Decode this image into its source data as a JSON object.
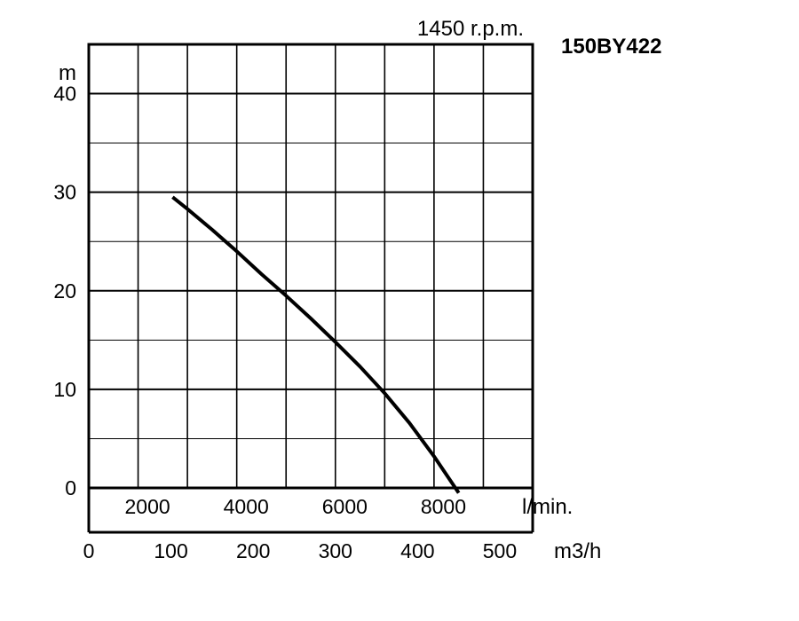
{
  "chart_data": {
    "type": "line",
    "title": "150BY422",
    "subtitle": "1450 r.p.m.",
    "ylabel": "m",
    "ylim": [
      0,
      45
    ],
    "yticks": [
      0,
      10,
      20,
      30,
      40
    ],
    "y_grid_step": 5,
    "xlabel_primary": "l/min.",
    "xlim_primary": [
      0,
      9000
    ],
    "xticks_primary": [
      2000,
      4000,
      6000,
      8000
    ],
    "x_grid_step": 1000,
    "xlabel_secondary": "m3/h",
    "xlim_secondary": [
      0,
      540
    ],
    "xticks_secondary": [
      0,
      100,
      200,
      300,
      400,
      500
    ],
    "grid": true,
    "series": [
      {
        "x": [
          1700,
          2000,
          2500,
          3000,
          3500,
          4000,
          4500,
          5000,
          5500,
          6000,
          6500,
          7000,
          7500
        ],
        "y": [
          29.5,
          28.3,
          26.2,
          24.0,
          21.7,
          19.5,
          17.2,
          14.8,
          12.3,
          9.6,
          6.6,
          3.2,
          -0.5
        ]
      }
    ]
  }
}
